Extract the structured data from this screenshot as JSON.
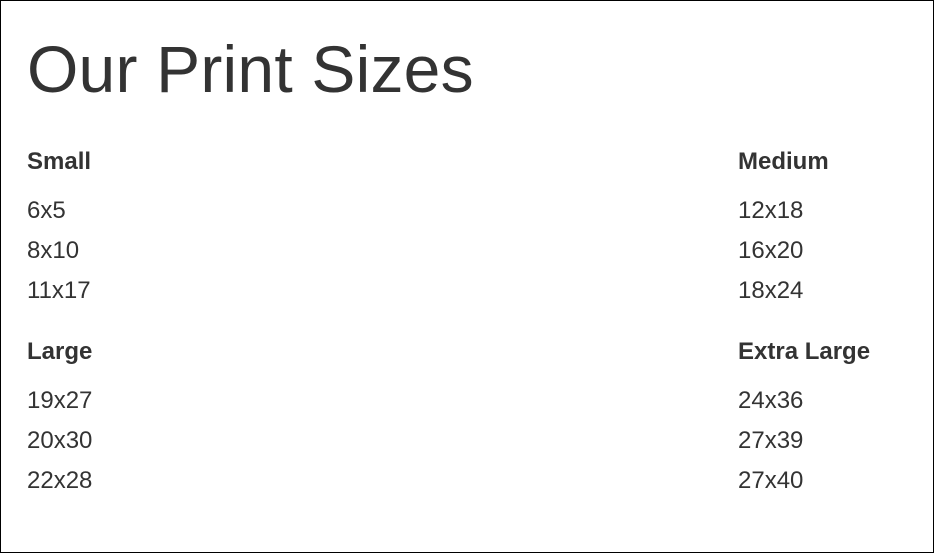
{
  "page": {
    "title": "Our Print Sizes"
  },
  "groups": {
    "small": {
      "heading": "Small",
      "sizes": [
        "6x5",
        "8x10",
        "11x17"
      ]
    },
    "medium": {
      "heading": "Medium",
      "sizes": [
        "12x18",
        "16x20",
        "18x24"
      ]
    },
    "large": {
      "heading": "Large",
      "sizes": [
        "19x27",
        "20x30",
        "22x28"
      ]
    },
    "extra_large": {
      "heading": "Extra Large",
      "sizes": [
        "24x36",
        "27x39",
        "27x40"
      ]
    }
  },
  "colors": {
    "text": "#333333",
    "background": "#ffffff",
    "border": "#000000"
  }
}
